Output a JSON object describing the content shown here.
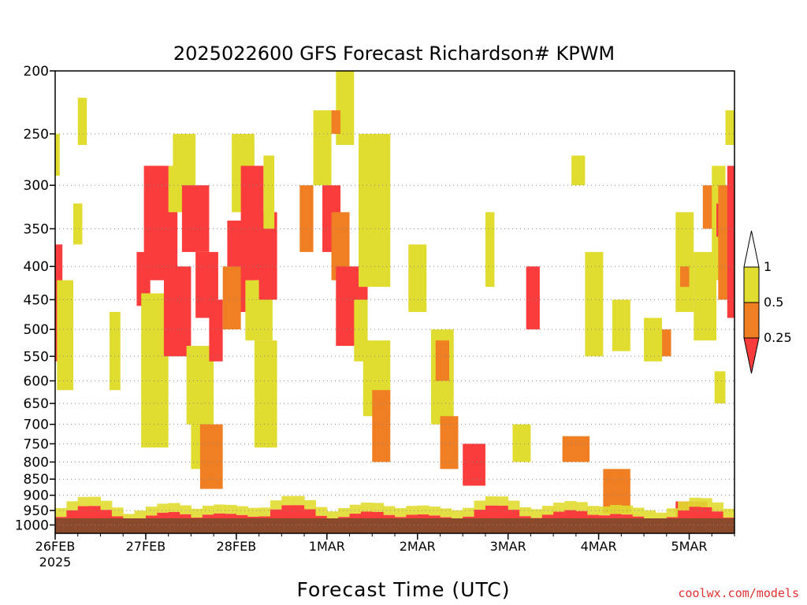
{
  "chart_data": {
    "type": "heatmap",
    "title": "2025022600 GFS Forecast Richardson# KPWM",
    "xlabel": "Forecast Time (UTC)",
    "ylabel": "",
    "x_ticks": [
      {
        "label": "26FEB",
        "sublabel": "2025",
        "day": 0
      },
      {
        "label": "27FEB",
        "day": 1
      },
      {
        "label": "28FEB",
        "day": 2
      },
      {
        "label": "1MAR",
        "day": 3
      },
      {
        "label": "2MAR",
        "day": 4
      },
      {
        "label": "3MAR",
        "day": 5
      },
      {
        "label": "4MAR",
        "day": 6
      },
      {
        "label": "5MAR",
        "day": 7
      }
    ],
    "xlim_days": [
      0,
      7.5
    ],
    "y_ticks": [
      200,
      250,
      300,
      350,
      400,
      450,
      500,
      550,
      600,
      650,
      700,
      750,
      800,
      850,
      900,
      950,
      1000
    ],
    "ylim_hpa": [
      200,
      1030
    ],
    "y_scale": "log-pressure",
    "gridlines": "dotted horizontal at pressure levels",
    "colorbar": {
      "labels": [
        "1",
        "0.5",
        "0.25"
      ],
      "bins": [
        {
          "range": "0.5-1",
          "color": "#e0dc30"
        },
        {
          "range": "0.25-0.5",
          "color": "#ef7f22"
        },
        {
          "range": "<0.25",
          "color": "#fb3c3c"
        }
      ],
      "arrow_top_color": "#ffffff",
      "arrow_bottom_color": "#fb3c3c"
    },
    "terrain_color": "#8b4a2b",
    "regions": [
      {
        "d0": 0.0,
        "d1": 0.08,
        "p0": 370,
        "p1": 560,
        "c": "r"
      },
      {
        "d0": 0.02,
        "d1": 0.2,
        "p0": 420,
        "p1": 620,
        "c": "y"
      },
      {
        "d0": 0.0,
        "d1": 0.05,
        "p0": 250,
        "p1": 290,
        "c": "y"
      },
      {
        "d0": 0.25,
        "d1": 0.35,
        "p0": 220,
        "p1": 260,
        "c": "y"
      },
      {
        "d0": 0.2,
        "d1": 0.3,
        "p0": 320,
        "p1": 370,
        "c": "y"
      },
      {
        "d0": 0.6,
        "d1": 0.72,
        "p0": 470,
        "p1": 620,
        "c": "y"
      },
      {
        "d0": 0.9,
        "d1": 1.05,
        "p0": 380,
        "p1": 460,
        "c": "r"
      },
      {
        "d0": 0.95,
        "d1": 1.25,
        "p0": 440,
        "p1": 760,
        "c": "y"
      },
      {
        "d0": 0.98,
        "d1": 1.35,
        "p0": 280,
        "p1": 420,
        "c": "r"
      },
      {
        "d0": 1.2,
        "d1": 1.5,
        "p0": 400,
        "p1": 550,
        "c": "r"
      },
      {
        "d0": 1.25,
        "d1": 1.5,
        "p0": 280,
        "p1": 330,
        "c": "y"
      },
      {
        "d0": 1.3,
        "d1": 1.55,
        "p0": 250,
        "p1": 300,
        "c": "y"
      },
      {
        "d0": 1.4,
        "d1": 1.7,
        "p0": 300,
        "p1": 380,
        "c": "r"
      },
      {
        "d0": 1.45,
        "d1": 1.75,
        "p0": 530,
        "p1": 700,
        "c": "y"
      },
      {
        "d0": 1.55,
        "d1": 1.8,
        "p0": 380,
        "p1": 480,
        "c": "r"
      },
      {
        "d0": 1.5,
        "d1": 1.7,
        "p0": 600,
        "p1": 820,
        "c": "y"
      },
      {
        "d0": 1.6,
        "d1": 1.85,
        "p0": 700,
        "p1": 880,
        "c": "o"
      },
      {
        "d0": 1.7,
        "d1": 1.85,
        "p0": 450,
        "p1": 560,
        "c": "r"
      },
      {
        "d0": 1.9,
        "d1": 2.2,
        "p0": 340,
        "p1": 470,
        "c": "r"
      },
      {
        "d0": 1.85,
        "d1": 2.05,
        "p0": 400,
        "p1": 500,
        "c": "o"
      },
      {
        "d0": 1.95,
        "d1": 2.2,
        "p0": 250,
        "p1": 330,
        "c": "y"
      },
      {
        "d0": 2.05,
        "d1": 2.3,
        "p0": 280,
        "p1": 420,
        "c": "r"
      },
      {
        "d0": 2.1,
        "d1": 2.4,
        "p0": 420,
        "p1": 520,
        "c": "y"
      },
      {
        "d0": 2.2,
        "d1": 2.45,
        "p0": 520,
        "p1": 760,
        "c": "y"
      },
      {
        "d0": 2.25,
        "d1": 2.45,
        "p0": 330,
        "p1": 450,
        "c": "r"
      },
      {
        "d0": 2.3,
        "d1": 2.42,
        "p0": 270,
        "p1": 350,
        "c": "y"
      },
      {
        "d0": 2.7,
        "d1": 2.85,
        "p0": 300,
        "p1": 380,
        "c": "o"
      },
      {
        "d0": 2.85,
        "d1": 3.05,
        "p0": 230,
        "p1": 300,
        "c": "y"
      },
      {
        "d0": 2.95,
        "d1": 3.15,
        "p0": 300,
        "p1": 380,
        "c": "r"
      },
      {
        "d0": 3.05,
        "d1": 3.25,
        "p0": 330,
        "p1": 420,
        "c": "o"
      },
      {
        "d0": 3.1,
        "d1": 3.35,
        "p0": 400,
        "p1": 530,
        "c": "r"
      },
      {
        "d0": 3.1,
        "d1": 3.3,
        "p0": 200,
        "p1": 260,
        "c": "y"
      },
      {
        "d0": 3.05,
        "d1": 3.15,
        "p0": 230,
        "p1": 250,
        "c": "o"
      },
      {
        "d0": 3.25,
        "d1": 3.45,
        "p0": 420,
        "p1": 520,
        "c": "r"
      },
      {
        "d0": 3.3,
        "d1": 3.45,
        "p0": 450,
        "p1": 560,
        "c": "y"
      },
      {
        "d0": 3.35,
        "d1": 3.7,
        "p0": 250,
        "p1": 430,
        "c": "y"
      },
      {
        "d0": 3.4,
        "d1": 3.7,
        "p0": 520,
        "p1": 680,
        "c": "y"
      },
      {
        "d0": 3.5,
        "d1": 3.7,
        "p0": 620,
        "p1": 800,
        "c": "o"
      },
      {
        "d0": 3.9,
        "d1": 4.1,
        "p0": 370,
        "p1": 470,
        "c": "y"
      },
      {
        "d0": 4.15,
        "d1": 4.4,
        "p0": 500,
        "p1": 700,
        "c": "y"
      },
      {
        "d0": 4.2,
        "d1": 4.35,
        "p0": 520,
        "p1": 600,
        "c": "o"
      },
      {
        "d0": 4.25,
        "d1": 4.45,
        "p0": 680,
        "p1": 820,
        "c": "o"
      },
      {
        "d0": 4.5,
        "d1": 4.75,
        "p0": 750,
        "p1": 870,
        "c": "r"
      },
      {
        "d0": 4.75,
        "d1": 4.85,
        "p0": 330,
        "p1": 430,
        "c": "y"
      },
      {
        "d0": 5.05,
        "d1": 5.25,
        "p0": 700,
        "p1": 800,
        "c": "y"
      },
      {
        "d0": 5.2,
        "d1": 5.35,
        "p0": 400,
        "p1": 500,
        "c": "r"
      },
      {
        "d0": 5.6,
        "d1": 5.9,
        "p0": 730,
        "p1": 800,
        "c": "o"
      },
      {
        "d0": 5.7,
        "d1": 5.85,
        "p0": 270,
        "p1": 300,
        "c": "y"
      },
      {
        "d0": 5.85,
        "d1": 6.05,
        "p0": 380,
        "p1": 550,
        "c": "y"
      },
      {
        "d0": 6.15,
        "d1": 6.35,
        "p0": 450,
        "p1": 540,
        "c": "y"
      },
      {
        "d0": 6.5,
        "d1": 6.7,
        "p0": 480,
        "p1": 560,
        "c": "y"
      },
      {
        "d0": 6.7,
        "d1": 6.8,
        "p0": 500,
        "p1": 550,
        "c": "o"
      },
      {
        "d0": 6.85,
        "d1": 7.05,
        "p0": 330,
        "p1": 470,
        "c": "y"
      },
      {
        "d0": 6.9,
        "d1": 7.0,
        "p0": 400,
        "p1": 430,
        "c": "o"
      },
      {
        "d0": 7.05,
        "d1": 7.3,
        "p0": 380,
        "p1": 520,
        "c": "y"
      },
      {
        "d0": 7.15,
        "d1": 7.3,
        "p0": 300,
        "p1": 350,
        "c": "o"
      },
      {
        "d0": 7.25,
        "d1": 7.4,
        "p0": 280,
        "p1": 420,
        "c": "y"
      },
      {
        "d0": 7.3,
        "d1": 7.4,
        "p0": 320,
        "p1": 360,
        "c": "r"
      },
      {
        "d0": 7.32,
        "d1": 7.5,
        "p0": 300,
        "p1": 450,
        "c": "o"
      },
      {
        "d0": 7.4,
        "d1": 7.5,
        "p0": 230,
        "p1": 260,
        "c": "y"
      },
      {
        "d0": 7.42,
        "d1": 7.5,
        "p0": 280,
        "p1": 480,
        "c": "r"
      },
      {
        "d0": 7.28,
        "d1": 7.4,
        "p0": 580,
        "p1": 650,
        "c": "y"
      },
      {
        "d0": 6.05,
        "d1": 6.35,
        "p0": 820,
        "p1": 960,
        "c": "o"
      },
      {
        "d0": 6.85,
        "d1": 7.2,
        "p0": 920,
        "p1": 990,
        "c": "r"
      }
    ],
    "boundary_layer_red_depth_hpa": 60
  }
}
